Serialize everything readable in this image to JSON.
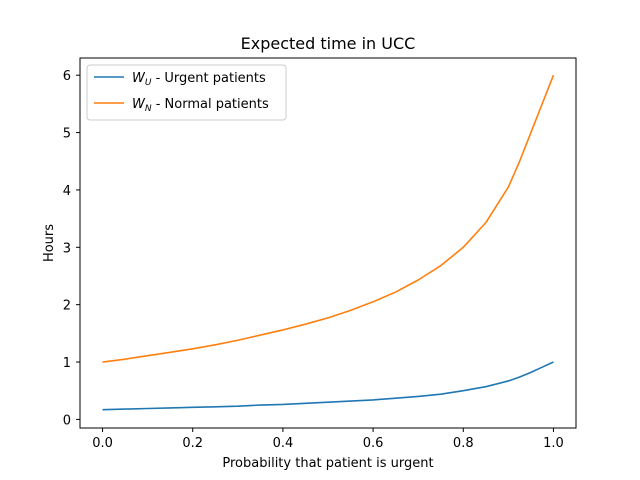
{
  "chart_data": {
    "type": "line",
    "title": "Expected time in UCC",
    "xlabel": "Probability that patient is urgent",
    "ylabel": "Hours",
    "xlim": [
      -0.05,
      1.05
    ],
    "ylim": [
      -0.15,
      6.3
    ],
    "xticks": [
      0.0,
      0.2,
      0.4,
      0.6,
      0.8,
      1.0
    ],
    "xtick_labels": [
      "0.0",
      "0.2",
      "0.4",
      "0.6",
      "0.8",
      "1.0"
    ],
    "yticks": [
      0,
      1,
      2,
      3,
      4,
      5,
      6
    ],
    "ytick_labels": [
      "0",
      "1",
      "2",
      "3",
      "4",
      "5",
      "6"
    ],
    "grid": false,
    "legend_position": "top-left",
    "x": [
      0.0,
      0.05,
      0.1,
      0.15,
      0.2,
      0.25,
      0.3,
      0.35,
      0.4,
      0.45,
      0.5,
      0.55,
      0.6,
      0.65,
      0.7,
      0.75,
      0.8,
      0.85,
      0.9,
      0.925,
      0.95,
      0.975,
      1.0
    ],
    "series": [
      {
        "name_main": "W",
        "name_sub": "U",
        "name_rest": " - Urgent patients",
        "color": "#1f77b4",
        "values": [
          0.17,
          0.18,
          0.19,
          0.2,
          0.21,
          0.22,
          0.23,
          0.25,
          0.26,
          0.28,
          0.3,
          0.32,
          0.34,
          0.37,
          0.4,
          0.44,
          0.5,
          0.57,
          0.67,
          0.74,
          0.82,
          0.91,
          1.0
        ]
      },
      {
        "name_main": "W",
        "name_sub": "N",
        "name_rest": " - Normal patients",
        "color": "#ff7f0e",
        "values": [
          1.0,
          1.05,
          1.11,
          1.17,
          1.23,
          1.3,
          1.38,
          1.47,
          1.56,
          1.66,
          1.77,
          1.9,
          2.05,
          2.22,
          2.43,
          2.68,
          3.0,
          3.43,
          4.05,
          4.5,
          5.0,
          5.5,
          6.0
        ]
      }
    ]
  }
}
